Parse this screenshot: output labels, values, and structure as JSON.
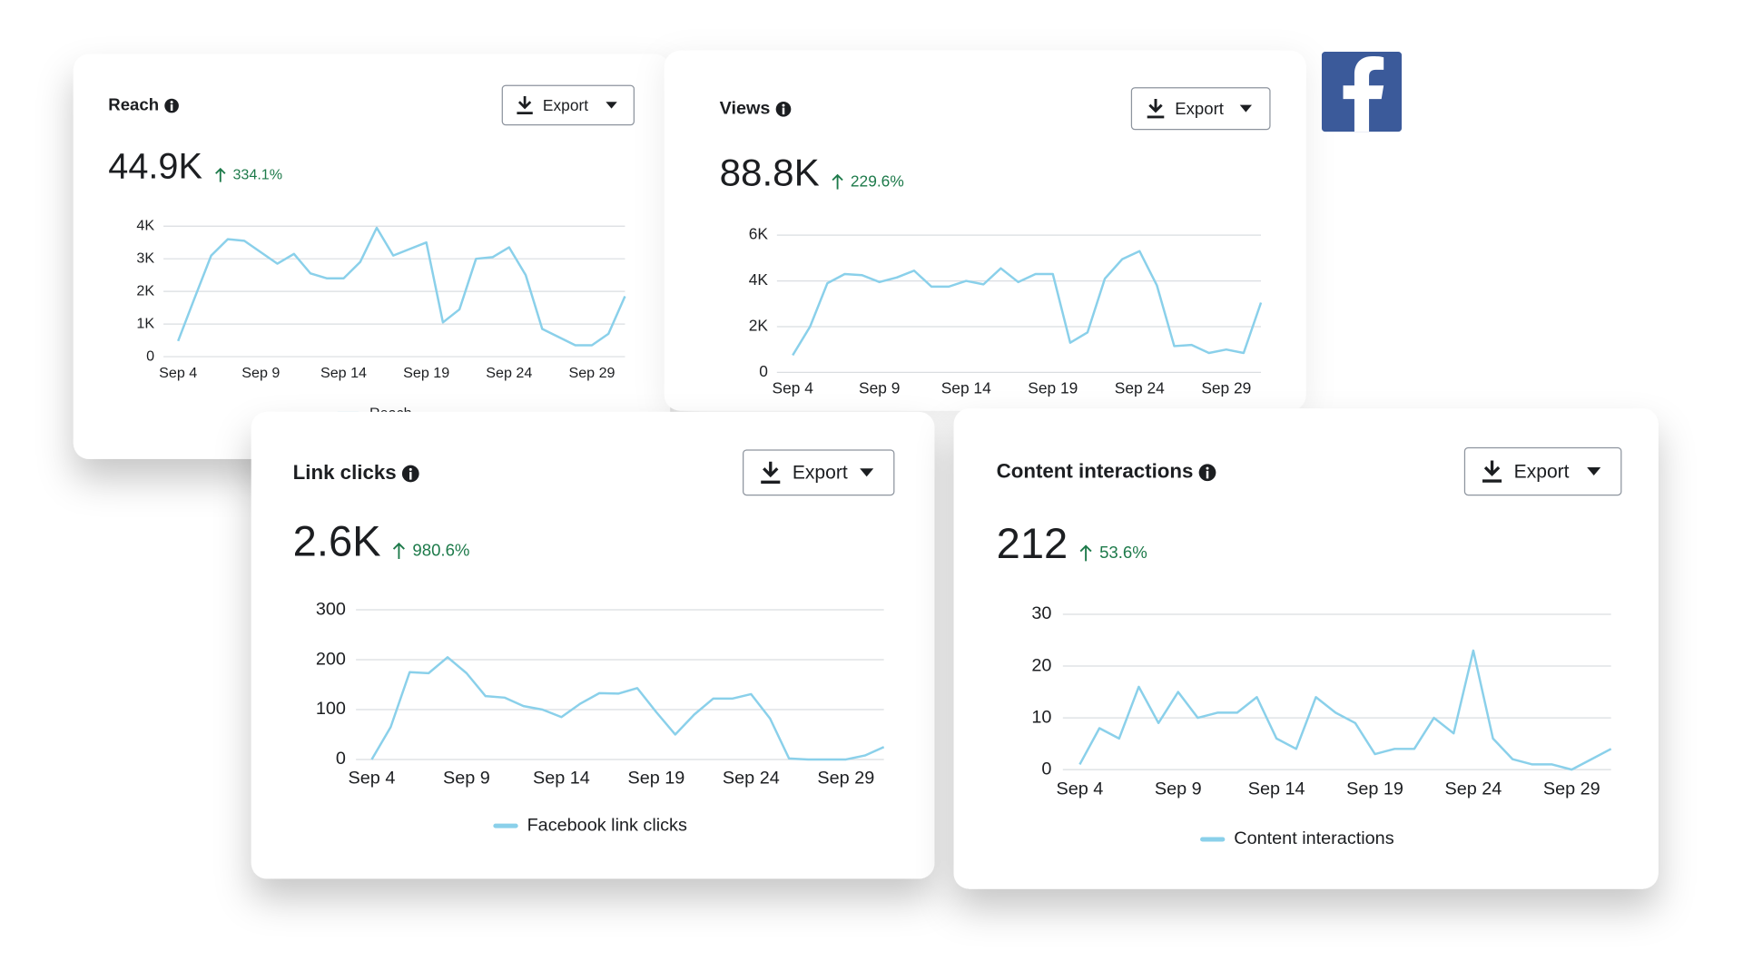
{
  "chart_data": [
    {
      "type": "line",
      "title": "Reach",
      "total": "44.9K",
      "change": "334.1%",
      "export": "Export",
      "categories": [
        "Sep 4",
        null,
        null,
        null,
        null,
        "Sep 9",
        null,
        null,
        null,
        null,
        "Sep 14",
        null,
        null,
        null,
        null,
        "Sep 19",
        null,
        null,
        null,
        null,
        "Sep 24",
        null,
        null,
        null,
        null,
        "Sep 29",
        null,
        null
      ],
      "series": [
        {
          "name": "Reach",
          "color": "#8ad0ea",
          "values": [
            480,
            1800,
            3100,
            3600,
            3550,
            3200,
            2850,
            3150,
            2550,
            2400,
            2400,
            2900,
            3950,
            3100,
            3300,
            3500,
            1050,
            1450,
            3000,
            3050,
            3350,
            2500,
            850,
            600,
            350,
            350,
            700,
            1850
          ]
        }
      ],
      "ylim": [
        0,
        4000
      ],
      "yticks": [
        0,
        {
          "value": 1000,
          "label": "1K"
        },
        {
          "value": 2000,
          "label": "2K"
        },
        {
          "value": 3000,
          "label": "3K"
        },
        {
          "value": 4000,
          "label": "4K"
        }
      ],
      "grid": true
    },
    {
      "type": "line",
      "title": "Views",
      "total": "88.8K",
      "change": "229.6%",
      "export": "Export",
      "categories": [
        "Sep 4",
        null,
        null,
        null,
        null,
        "Sep 9",
        null,
        null,
        null,
        null,
        "Sep 14",
        null,
        null,
        null,
        null,
        "Sep 19",
        null,
        null,
        null,
        null,
        "Sep 24",
        null,
        null,
        null,
        null,
        "Sep 29",
        null,
        null
      ],
      "series": [
        {
          "color": "#8ad0ea",
          "values": [
            750,
            2000,
            3900,
            4300,
            4250,
            3950,
            4150,
            4450,
            3750,
            3750,
            4000,
            3850,
            4550,
            3950,
            4300,
            4300,
            1300,
            1750,
            4100,
            4950,
            5300,
            3800,
            1150,
            1200,
            850,
            1000,
            850,
            3050
          ]
        }
      ],
      "ylim": [
        0,
        6000
      ],
      "yticks": [
        0,
        {
          "value": 2000,
          "label": "2K"
        },
        {
          "value": 4000,
          "label": "4K"
        },
        {
          "value": 6000,
          "label": "6K"
        }
      ],
      "grid": true
    },
    {
      "type": "line",
      "title": "Link clicks",
      "total": "2.6K",
      "change": "980.6%",
      "export": "Export",
      "categories": [
        "Sep 4",
        null,
        null,
        null,
        null,
        "Sep 9",
        null,
        null,
        null,
        null,
        "Sep 14",
        null,
        null,
        null,
        null,
        "Sep 19",
        null,
        null,
        null,
        null,
        "Sep 24",
        null,
        null,
        null,
        null,
        "Sep 29",
        null,
        null
      ],
      "series": [
        {
          "name": "Facebook link clicks",
          "color": "#8ad0ea",
          "values": [
            0,
            65,
            175,
            173,
            205,
            173,
            127,
            124,
            107,
            100,
            85,
            112,
            133,
            132,
            143,
            95,
            50,
            90,
            122,
            122,
            131,
            82,
            2,
            0,
            0,
            0,
            8,
            25
          ]
        }
      ],
      "ylim": [
        0,
        300
      ],
      "yticks": [
        0,
        100,
        200,
        300
      ],
      "grid": true
    },
    {
      "type": "line",
      "title": "Content interactions",
      "total": "212",
      "change": "53.6%",
      "export": "Export",
      "categories": [
        "Sep 4",
        null,
        null,
        null,
        null,
        "Sep 9",
        null,
        null,
        null,
        null,
        "Sep 14",
        null,
        null,
        null,
        null,
        "Sep 19",
        null,
        null,
        null,
        null,
        "Sep 24",
        null,
        null,
        null,
        null,
        "Sep 29",
        null,
        null
      ],
      "series": [
        {
          "name": "Content interactions",
          "color": "#8ad0ea",
          "values": [
            1,
            8,
            6,
            16,
            9,
            15,
            10,
            11,
            11,
            14,
            6,
            4,
            14,
            11,
            9,
            3,
            4,
            4,
            10,
            7,
            23,
            6,
            2,
            1,
            1,
            0,
            2,
            4
          ]
        }
      ],
      "ylim": [
        0,
        30
      ],
      "yticks": [
        0,
        10,
        20,
        30
      ],
      "grid": true
    }
  ]
}
